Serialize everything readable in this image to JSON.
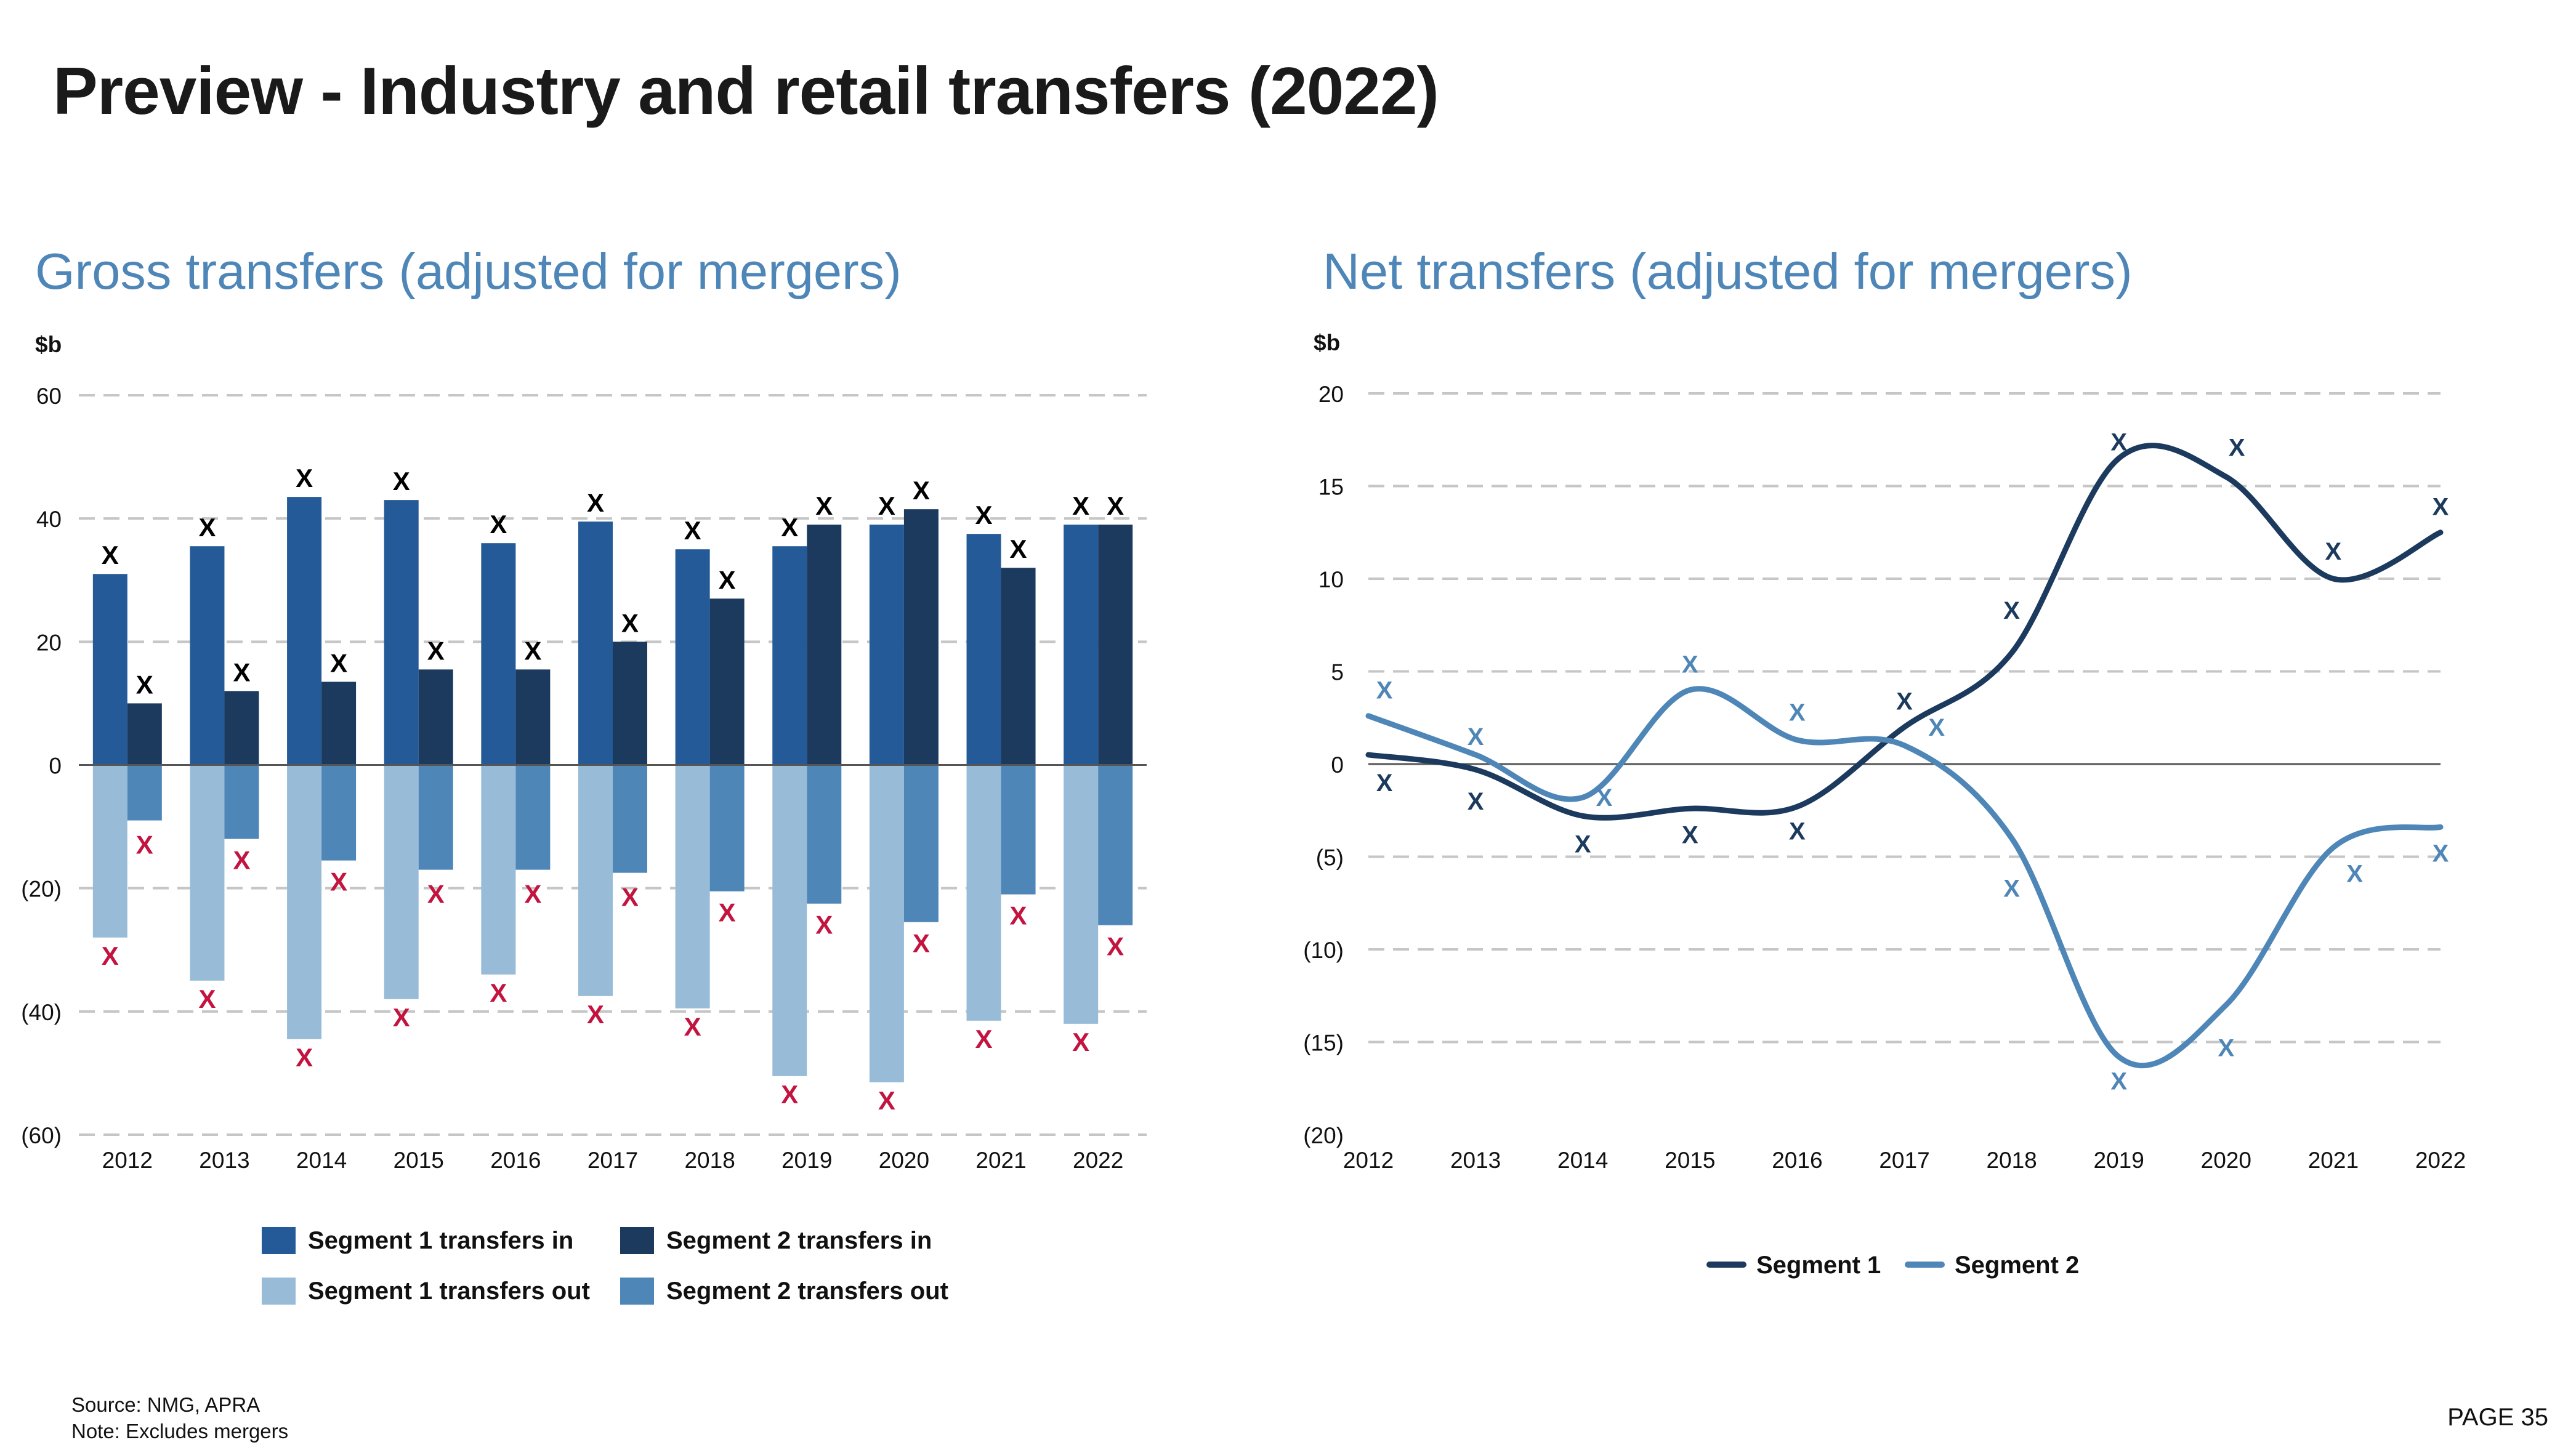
{
  "page": {
    "title": "Preview - Industry and retail transfers (2022)",
    "source": "Source: NMG, APRA",
    "note": "Note: Excludes mergers",
    "page_number": "PAGE 35"
  },
  "colors": {
    "seg1_in": "#245a97",
    "seg2_in": "#1c3a5e",
    "seg1_out": "#98bcd8",
    "seg2_out": "#4f86b8",
    "marker_in": "#000000",
    "marker_out": "#c2143f",
    "line1": "#1c3a5e",
    "line2": "#4f86b8",
    "subtitle": "#4f86b8"
  },
  "chart_data": [
    {
      "type": "bar",
      "title": "Gross transfers (adjusted for mergers)",
      "ylabel": "$b",
      "ylim": [
        -60,
        60
      ],
      "yticks": [
        60,
        40,
        20,
        0,
        -20,
        -40,
        -60
      ],
      "ytick_labels": [
        "60",
        "40",
        "20",
        "0",
        "(20)",
        "(40)",
        "(60)"
      ],
      "grid": true,
      "legend_position": "bottom",
      "marker_label": "X",
      "categories": [
        "2012",
        "2013",
        "2014",
        "2015",
        "2016",
        "2017",
        "2018",
        "2019",
        "2020",
        "2021",
        "2022"
      ],
      "series": [
        {
          "name": "Segment 1 transfers in",
          "values": [
            31,
            35.5,
            43.5,
            43,
            36,
            39.5,
            35,
            35.5,
            39,
            37.5,
            39
          ]
        },
        {
          "name": "Segment 2 transfers in",
          "values": [
            10,
            12,
            13.5,
            15.5,
            15.5,
            20,
            27,
            39,
            41.5,
            32,
            39
          ]
        },
        {
          "name": "Segment 1 transfers out",
          "values": [
            -28,
            -35,
            -44.5,
            -38,
            -34,
            -37.5,
            -39.5,
            -50.5,
            -51.5,
            -41.5,
            -42
          ]
        },
        {
          "name": "Segment 2 transfers out",
          "values": [
            -9,
            -12,
            -15.5,
            -17,
            -17,
            -17.5,
            -20.5,
            -22.5,
            -25.5,
            -21,
            -26
          ]
        }
      ],
      "markers": {
        "segment1_in": [
          34,
          38.5,
          46.5,
          46,
          39,
          42.5,
          38,
          38.5,
          42,
          40.5,
          42
        ],
        "segment2_in": [
          13,
          15,
          16.5,
          18.5,
          18.5,
          23,
          30,
          42,
          44.5,
          35,
          42
        ],
        "segment1_out": [
          -31,
          -38,
          -47.5,
          -41,
          -37,
          -40.5,
          -42.5,
          -53.5,
          -54.5,
          -44.5,
          -45
        ],
        "segment2_out": [
          -13,
          -15.5,
          -19,
          -21,
          -21,
          -21.5,
          -24,
          -26,
          -29,
          -24.5,
          -29.5
        ]
      }
    },
    {
      "type": "line",
      "title": "Net transfers (adjusted for mergers)",
      "ylabel": "$b",
      "ylim": [
        -20,
        20
      ],
      "yticks": [
        20,
        15,
        10,
        5,
        0,
        -5,
        -10,
        -15,
        -20
      ],
      "ytick_labels": [
        "20",
        "15",
        "10",
        "5",
        "0",
        "(5)",
        "(10)",
        "(15)",
        "(20)"
      ],
      "grid": true,
      "legend_position": "bottom",
      "marker_label": "X",
      "x": [
        "2012",
        "2013",
        "2014",
        "2015",
        "2016",
        "2017",
        "2018",
        "2019",
        "2020",
        "2021",
        "2022"
      ],
      "series": [
        {
          "name": "Segment 1",
          "values": [
            0.5,
            -0.3,
            -2.8,
            -2.4,
            -2.3,
            2.0,
            6.0,
            16.5,
            15.5,
            10.0,
            12.5
          ]
        },
        {
          "name": "Segment 2",
          "values": [
            2.6,
            0.5,
            -1.8,
            4.0,
            1.3,
            1.0,
            -4.0,
            -15.8,
            -13.0,
            -4.5,
            -3.4
          ]
        }
      ],
      "markers": {
        "segment1": [
          {
            "x": 2012.15,
            "y": -1.0
          },
          {
            "x": 2013.0,
            "y": -2.0
          },
          {
            "x": 2014.0,
            "y": -4.3
          },
          {
            "x": 2015.0,
            "y": -3.8
          },
          {
            "x": 2016.0,
            "y": -3.6
          },
          {
            "x": 2017.0,
            "y": 3.4
          },
          {
            "x": 2018.0,
            "y": 8.3
          },
          {
            "x": 2019.0,
            "y": 17.4
          },
          {
            "x": 2020.1,
            "y": 17.1
          },
          {
            "x": 2021.0,
            "y": 11.5
          },
          {
            "x": 2022.0,
            "y": 13.9
          }
        ],
        "segment2": [
          {
            "x": 2012.15,
            "y": 4.0
          },
          {
            "x": 2013.0,
            "y": 1.5
          },
          {
            "x": 2014.2,
            "y": -1.8
          },
          {
            "x": 2015.0,
            "y": 5.4
          },
          {
            "x": 2016.0,
            "y": 2.8
          },
          {
            "x": 2017.3,
            "y": 2.0
          },
          {
            "x": 2018.0,
            "y": -6.7
          },
          {
            "x": 2019.0,
            "y": -17.1
          },
          {
            "x": 2020.0,
            "y": -15.3
          },
          {
            "x": 2021.2,
            "y": -5.9
          },
          {
            "x": 2022.0,
            "y": -4.8
          }
        ]
      }
    }
  ]
}
